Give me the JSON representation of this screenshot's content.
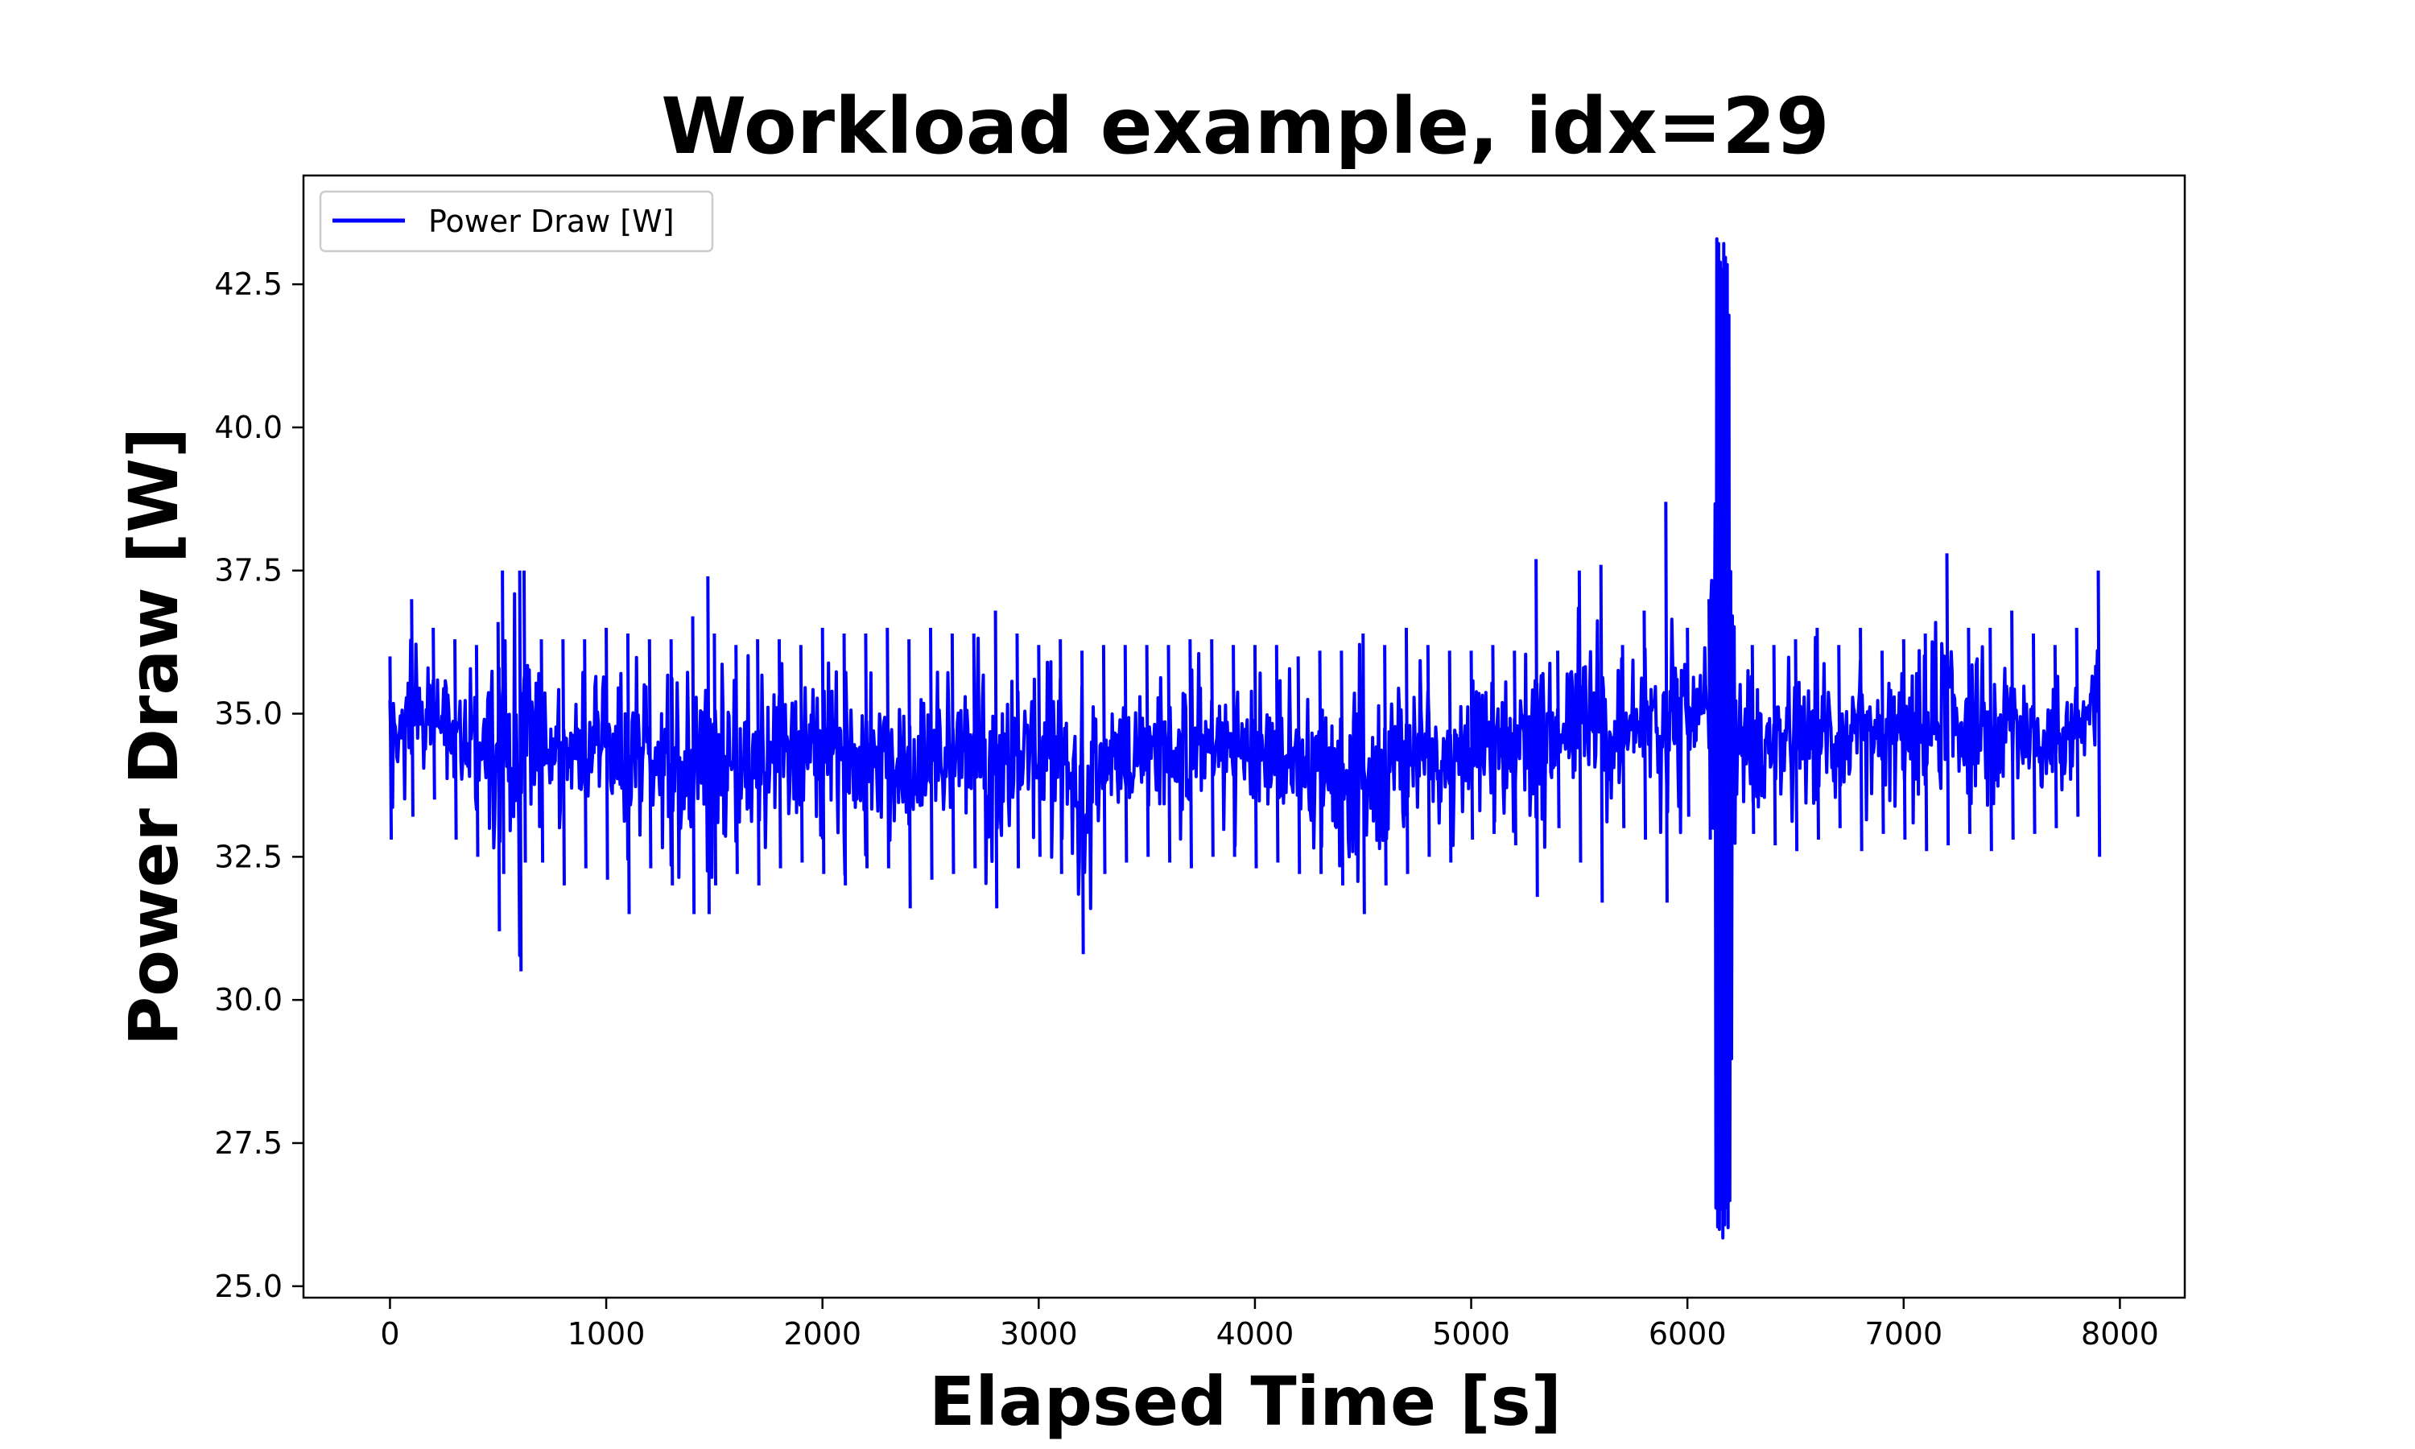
{
  "chart_data": {
    "type": "line",
    "title": "Workload example, idx=29",
    "xlabel": "Elapsed Time [s]",
    "ylabel": "Power Draw [W]",
    "xlim": [
      -400,
      8300
    ],
    "ylim": [
      24.8,
      44.4
    ],
    "x_ticks": [
      0,
      1000,
      2000,
      3000,
      4000,
      5000,
      6000,
      7000,
      8000
    ],
    "x_tick_labels": [
      "0",
      "1000",
      "2000",
      "3000",
      "4000",
      "5000",
      "6000",
      "7000",
      "8000"
    ],
    "y_ticks": [
      25.0,
      27.5,
      30.0,
      32.5,
      35.0,
      37.5,
      40.0,
      42.5
    ],
    "y_tick_labels": [
      "25.0",
      "27.5",
      "30.0",
      "32.5",
      "35.0",
      "37.5",
      "40.0",
      "42.5"
    ],
    "grid": false,
    "legend_position": "top-left",
    "series": [
      {
        "name": "Power Draw [W]",
        "color": "#0000ff",
        "x": [
          0,
          100,
          200,
          300,
          400,
          500,
          520,
          600,
          620,
          700,
          800,
          900,
          1000,
          1100,
          1200,
          1300,
          1400,
          1470,
          1500,
          1600,
          1700,
          1800,
          1900,
          2000,
          2100,
          2200,
          2300,
          2400,
          2500,
          2600,
          2700,
          2800,
          2900,
          3000,
          3100,
          3200,
          3300,
          3400,
          3500,
          3600,
          3700,
          3800,
          3900,
          4000,
          4100,
          4200,
          4300,
          4400,
          4500,
          4600,
          4700,
          4800,
          4900,
          5000,
          5100,
          5200,
          5300,
          5400,
          5500,
          5600,
          5700,
          5800,
          5900,
          6000,
          6100,
          6130,
          6140,
          6150,
          6160,
          6170,
          6180,
          6190,
          6200,
          6210,
          6220,
          6300,
          6400,
          6500,
          6600,
          6700,
          6800,
          6900,
          7000,
          7100,
          7200,
          7300,
          7400,
          7500,
          7600,
          7700,
          7800,
          7900
        ],
        "y_high": [
          36.0,
          37.0,
          36.5,
          36.3,
          36.2,
          36.6,
          37.5,
          37.5,
          37.5,
          36.3,
          36.3,
          36.3,
          36.5,
          36.4,
          36.3,
          36.3,
          36.7,
          37.4,
          36.4,
          36.2,
          36.3,
          36.3,
          36.2,
          36.5,
          36.4,
          36.4,
          36.5,
          36.3,
          36.5,
          36.4,
          36.4,
          36.8,
          36.4,
          36.2,
          36.3,
          36.1,
          36.2,
          36.2,
          36.2,
          36.2,
          36.3,
          36.3,
          36.2,
          36.2,
          36.2,
          36.0,
          36.1,
          36.1,
          36.4,
          36.2,
          36.5,
          36.2,
          36.1,
          36.1,
          36.2,
          36.1,
          37.7,
          36.1,
          37.5,
          37.6,
          36.2,
          36.8,
          38.7,
          36.5,
          37.0,
          43.5,
          43.3,
          43.4,
          43.1,
          43.3,
          43.2,
          43.0,
          38.0,
          37.0,
          36.2,
          36.2,
          36.2,
          36.3,
          36.5,
          36.2,
          36.5,
          36.1,
          36.3,
          36.4,
          37.8,
          36.5,
          36.5,
          36.8,
          36.4,
          36.2,
          36.5,
          37.5
        ],
        "y_low": [
          32.8,
          33.2,
          33.5,
          32.8,
          32.5,
          31.2,
          32.2,
          30.5,
          32.4,
          32.4,
          32.0,
          32.3,
          32.1,
          31.5,
          32.3,
          32.0,
          31.5,
          31.5,
          32.0,
          32.2,
          32.0,
          32.3,
          32.4,
          32.2,
          32.0,
          32.3,
          32.3,
          31.6,
          32.1,
          32.2,
          32.3,
          31.6,
          32.3,
          32.5,
          32.2,
          30.8,
          32.2,
          32.4,
          32.5,
          32.4,
          32.3,
          32.5,
          32.5,
          32.3,
          32.4,
          32.2,
          32.2,
          32.0,
          31.5,
          32.0,
          32.2,
          32.5,
          32.4,
          32.8,
          32.9,
          32.7,
          31.8,
          33.0,
          32.4,
          31.7,
          33.0,
          32.8,
          31.7,
          33.2,
          32.8,
          26.0,
          25.9,
          25.8,
          25.8,
          25.9,
          25.8,
          25.8,
          26.0,
          32.8,
          32.7,
          32.9,
          32.7,
          32.6,
          32.8,
          33.0,
          32.6,
          32.9,
          32.8,
          32.6,
          32.7,
          32.9,
          32.6,
          32.8,
          32.9,
          33.0,
          33.2,
          32.5
        ]
      }
    ]
  }
}
